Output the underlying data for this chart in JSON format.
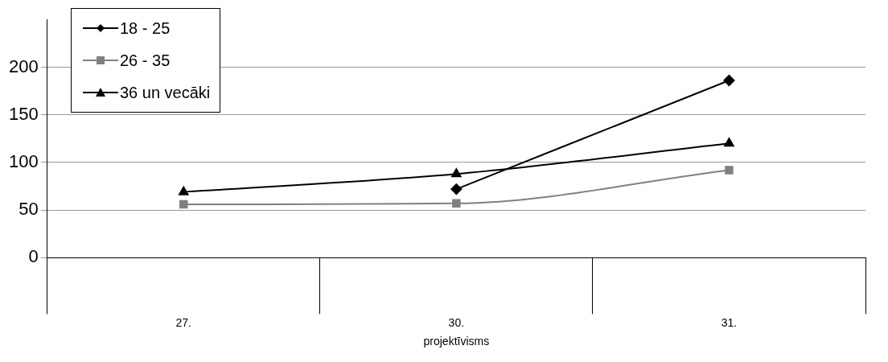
{
  "chart_data": {
    "type": "line",
    "categories": [
      "27.",
      "30.",
      "31."
    ],
    "xlabel": "projektīvisms",
    "ylim": [
      0,
      250
    ],
    "yticks": [
      0,
      50,
      100,
      150,
      200
    ],
    "grid": "y",
    "legend": "top left",
    "series": [
      {
        "name": "18 - 25",
        "color": "#000000",
        "marker": "diamond",
        "values": [
          null,
          72,
          186
        ]
      },
      {
        "name": "26 - 35",
        "color": "#808080",
        "marker": "square",
        "values": [
          56,
          57,
          92
        ]
      },
      {
        "name": "36 un vecāki",
        "color": "#000000",
        "marker": "triangle",
        "values": [
          69,
          88,
          120
        ]
      }
    ]
  }
}
